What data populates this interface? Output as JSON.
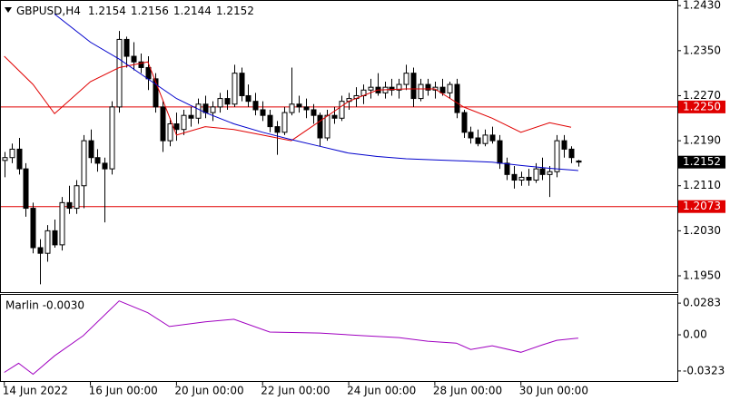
{
  "chart_data": [
    {
      "type": "candlestick",
      "title": "GBPUSD,H4",
      "ohlc": [
        [
          1.2155,
          1.217,
          1.2125,
          1.216
        ],
        [
          1.216,
          1.2185,
          1.215,
          1.2175
        ],
        [
          1.2175,
          1.2195,
          1.213,
          1.214
        ],
        [
          1.214,
          1.215,
          1.2055,
          1.207
        ],
        [
          1.207,
          1.208,
          1.199,
          1.2
        ],
        [
          1.2,
          1.2015,
          1.1935,
          1.199
        ],
        [
          1.199,
          1.204,
          1.1975,
          1.203
        ],
        [
          1.203,
          1.205,
          1.2,
          1.2005
        ],
        [
          1.2005,
          1.209,
          1.1995,
          1.208
        ],
        [
          1.208,
          1.211,
          1.206,
          1.207
        ],
        [
          1.207,
          1.212,
          1.206,
          1.211
        ],
        [
          1.211,
          1.22,
          1.207,
          1.219
        ],
        [
          1.219,
          1.221,
          1.215,
          1.216
        ],
        [
          1.216,
          1.2175,
          1.2135,
          1.215
        ],
        [
          1.215,
          1.216,
          1.2045,
          1.214
        ],
        [
          1.214,
          1.226,
          1.213,
          1.225
        ],
        [
          1.225,
          1.2385,
          1.224,
          1.237
        ],
        [
          1.237,
          1.2375,
          1.232,
          1.234
        ],
        [
          1.234,
          1.2365,
          1.2315,
          1.233
        ],
        [
          1.233,
          1.2345,
          1.231,
          1.232
        ],
        [
          1.232,
          1.234,
          1.228,
          1.23
        ],
        [
          1.23,
          1.231,
          1.224,
          1.225
        ],
        [
          1.225,
          1.226,
          1.217,
          1.219
        ],
        [
          1.219,
          1.223,
          1.218,
          1.222
        ],
        [
          1.222,
          1.224,
          1.219,
          1.221
        ],
        [
          1.221,
          1.2245,
          1.22,
          1.2235
        ],
        [
          1.2235,
          1.225,
          1.2215,
          1.223
        ],
        [
          1.223,
          1.2265,
          1.222,
          1.2255
        ],
        [
          1.2255,
          1.227,
          1.223,
          1.224
        ],
        [
          1.224,
          1.226,
          1.2225,
          1.225
        ],
        [
          1.225,
          1.2275,
          1.224,
          1.2265
        ],
        [
          1.2265,
          1.228,
          1.2245,
          1.2255
        ],
        [
          1.2255,
          1.2325,
          1.225,
          1.231
        ],
        [
          1.231,
          1.232,
          1.226,
          1.227
        ],
        [
          1.227,
          1.229,
          1.225,
          1.226
        ],
        [
          1.226,
          1.2275,
          1.2235,
          1.2245
        ],
        [
          1.2245,
          1.226,
          1.2225,
          1.2235
        ],
        [
          1.2235,
          1.2245,
          1.2205,
          1.2215
        ],
        [
          1.2215,
          1.2225,
          1.2165,
          1.2205
        ],
        [
          1.2205,
          1.225,
          1.22,
          1.224
        ],
        [
          1.224,
          1.232,
          1.2235,
          1.2255
        ],
        [
          1.2255,
          1.227,
          1.224,
          1.225
        ],
        [
          1.225,
          1.2265,
          1.223,
          1.2245
        ],
        [
          1.2245,
          1.2255,
          1.222,
          1.2235
        ],
        [
          1.2235,
          1.224,
          1.218,
          1.2195
        ],
        [
          1.2195,
          1.2245,
          1.219,
          1.2235
        ],
        [
          1.2235,
          1.225,
          1.222,
          1.223
        ],
        [
          1.223,
          1.227,
          1.2225,
          1.226
        ],
        [
          1.226,
          1.2275,
          1.2245,
          1.2265
        ],
        [
          1.2265,
          1.2285,
          1.225,
          1.227
        ],
        [
          1.227,
          1.229,
          1.2255,
          1.228
        ],
        [
          1.228,
          1.23,
          1.2265,
          1.2285
        ],
        [
          1.2285,
          1.231,
          1.227,
          1.2275
        ],
        [
          1.2275,
          1.2295,
          1.2265,
          1.2285
        ],
        [
          1.2285,
          1.23,
          1.227,
          1.228
        ],
        [
          1.228,
          1.23,
          1.2265,
          1.229
        ],
        [
          1.229,
          1.2325,
          1.228,
          1.231
        ],
        [
          1.231,
          1.232,
          1.225,
          1.2265
        ],
        [
          1.2265,
          1.23,
          1.226,
          1.229
        ],
        [
          1.229,
          1.23,
          1.227,
          1.228
        ],
        [
          1.228,
          1.2295,
          1.2265,
          1.2285
        ],
        [
          1.2285,
          1.23,
          1.227,
          1.2275
        ],
        [
          1.2275,
          1.2295,
          1.2265,
          1.229
        ],
        [
          1.229,
          1.23,
          1.223,
          1.224
        ],
        [
          1.224,
          1.2245,
          1.2195,
          1.2205
        ],
        [
          1.2205,
          1.2215,
          1.2185,
          1.2195
        ],
        [
          1.2195,
          1.221,
          1.218,
          1.2185
        ],
        [
          1.2185,
          1.221,
          1.218,
          1.22
        ],
        [
          1.22,
          1.2215,
          1.2185,
          1.219
        ],
        [
          1.219,
          1.22,
          1.214,
          1.215
        ],
        [
          1.215,
          1.216,
          1.212,
          1.213
        ],
        [
          1.213,
          1.2145,
          1.2105,
          1.212
        ],
        [
          1.212,
          1.2135,
          1.211,
          1.2125
        ],
        [
          1.2125,
          1.214,
          1.211,
          1.212
        ],
        [
          1.212,
          1.215,
          1.2115,
          1.214
        ],
        [
          1.214,
          1.216,
          1.212,
          1.213
        ],
        [
          1.213,
          1.2145,
          1.209,
          1.2135
        ],
        [
          1.2135,
          1.22,
          1.2125,
          1.219
        ],
        [
          1.219,
          1.22,
          1.216,
          1.2175
        ],
        [
          1.2175,
          1.218,
          1.215,
          1.216
        ],
        [
          1.2154,
          1.2156,
          1.2144,
          1.2152
        ]
      ],
      "lines": [
        {
          "color": "#e00000",
          "x": [
            0,
            4,
            7,
            12,
            16,
            20,
            24,
            28,
            32,
            36,
            40,
            44,
            48,
            52,
            56,
            60,
            64,
            68,
            72,
            76,
            79
          ],
          "values": [
            1.234,
            1.229,
            1.2238,
            1.2295,
            1.232,
            1.233,
            1.22,
            1.2215,
            1.221,
            1.22,
            1.219,
            1.2225,
            1.226,
            1.228,
            1.2282,
            1.2282,
            1.225,
            1.223,
            1.2205,
            1.2222,
            1.2214
          ]
        },
        {
          "color": "#0000cc",
          "x": [
            7,
            12,
            16,
            20,
            24,
            28,
            32,
            36,
            40,
            44,
            48,
            52,
            56,
            60,
            64,
            68,
            72,
            76,
            80
          ],
          "values": [
            1.2415,
            1.2365,
            1.2335,
            1.23,
            1.2265,
            1.224,
            1.222,
            1.2205,
            1.2192,
            1.218,
            1.2168,
            1.2162,
            1.2158,
            1.2156,
            1.2154,
            1.2152,
            1.2146,
            1.2141,
            1.2137
          ]
        }
      ],
      "hlines": [
        {
          "value": 1.225,
          "label": "1.2250"
        },
        {
          "value": 1.2073,
          "label": "1.2073"
        }
      ],
      "hline_color": "#e00000",
      "xlim": [
        -0.6,
        93.8
      ],
      "xticks": [
        {
          "value": 0,
          "label": "14 Jun 2022"
        },
        {
          "value": 12,
          "label": "16 Jun 00:00"
        },
        {
          "value": 24,
          "label": "20 Jun 00:00"
        },
        {
          "value": 36,
          "label": "22 Jun 00:00"
        },
        {
          "value": 48,
          "label": "24 Jun 00:00"
        },
        {
          "value": 60,
          "label": "28 Jun 00:00"
        },
        {
          "value": 72,
          "label": "30 Jun 00:00"
        }
      ],
      "ylim": [
        1.1921,
        1.244
      ],
      "yticks": [
        {
          "value": 1.243,
          "label": "1.2430"
        },
        {
          "value": 1.235,
          "label": "1.2350"
        },
        {
          "value": 1.227,
          "label": "1.2270"
        },
        {
          "value": 1.219,
          "label": "1.2190"
        },
        {
          "value": 1.211,
          "label": "1.2110"
        },
        {
          "value": 1.203,
          "label": "1.2030"
        },
        {
          "value": 1.195,
          "label": "1.1950"
        }
      ]
    },
    {
      "type": "line",
      "title": "Marlin -0.0030",
      "color": "#a000c0",
      "x": [
        0,
        2,
        4,
        7,
        11,
        16,
        20,
        23,
        28,
        32,
        37,
        44,
        50,
        55,
        59,
        63,
        65,
        68,
        72,
        75,
        77,
        80
      ],
      "values": [
        -0.0336,
        -0.0254,
        -0.0352,
        -0.0188,
        -0.0008,
        0.0303,
        0.0197,
        0.0074,
        0.0115,
        0.0139,
        0.0025,
        0.0016,
        -0.0008,
        -0.0025,
        -0.0057,
        -0.0074,
        -0.0131,
        -0.0098,
        -0.0156,
        -0.009,
        -0.0049,
        -0.003
      ],
      "ylim": [
        -0.0413,
        0.0365
      ],
      "yticks": [
        0.0283,
        {
          "value": 0,
          "label": "0.00"
        },
        -0.0323
      ]
    }
  ]
}
